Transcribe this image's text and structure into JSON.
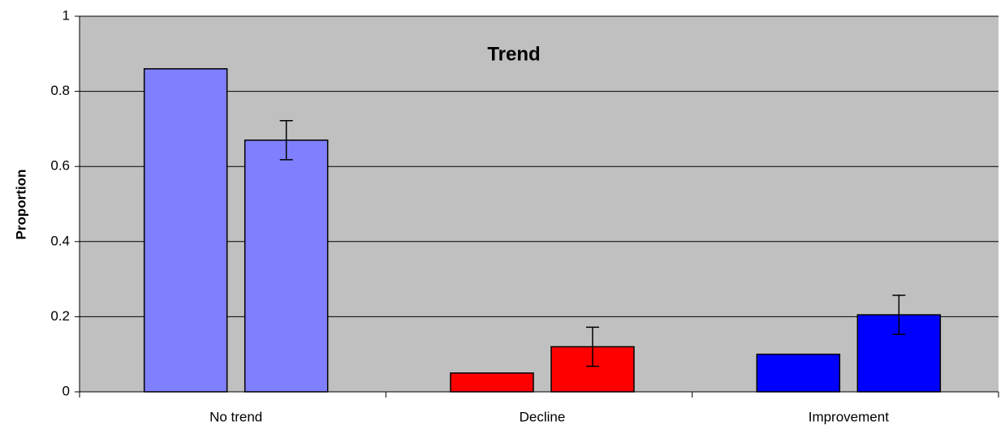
{
  "chart_data": {
    "type": "bar",
    "title": "Trend",
    "y_label": "Proportion",
    "categories": [
      "No trend",
      "Decline",
      "Improvement"
    ],
    "series": [
      {
        "colors": [
          "#8080ff",
          "#ff0000",
          "#0000ff"
        ],
        "values": [
          0.86,
          0.05,
          0.1
        ]
      },
      {
        "colors": [
          "#8080ff",
          "#ff0000",
          "#0000ff"
        ],
        "values": [
          0.67,
          0.12,
          0.205
        ],
        "errors": [
          0.052,
          0.052,
          0.052
        ]
      }
    ],
    "ylim": [
      0,
      1
    ],
    "yticks": [
      0,
      0.2,
      0.4,
      0.6,
      0.8,
      1
    ],
    "grid": true,
    "background": "#c0c0c0"
  }
}
